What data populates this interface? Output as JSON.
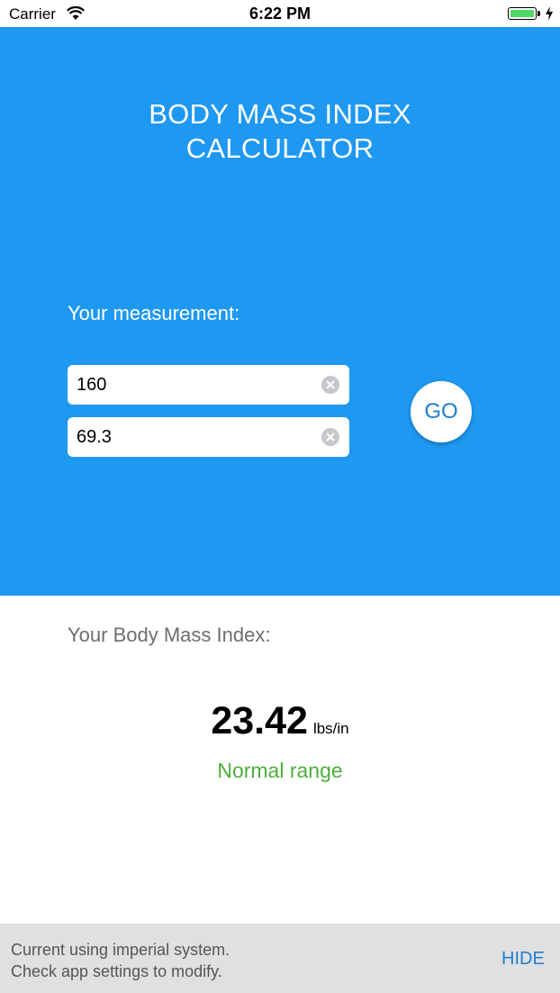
{
  "status_bar": {
    "carrier": "Carrier",
    "time": "6:22 PM",
    "wifi_icon": "wifi-icon",
    "battery_icon": "battery-icon",
    "charging_icon": "charging-bolt-icon",
    "battery_color": "#4cd964"
  },
  "header": {
    "title_line1": "BODY MASS INDEX",
    "title_line2": "CALCULATOR",
    "background_color": "#1e98f0"
  },
  "measurement": {
    "label": "Your measurement:",
    "weight_value": "160",
    "height_value": "69.3",
    "clear_icon": "clear-circle-icon",
    "go_label": "GO"
  },
  "result": {
    "label": "Your Body Mass Index:",
    "value": "23.42",
    "unit": "lbs/in",
    "category": "Normal range",
    "category_color": "#4caf3a"
  },
  "notice": {
    "line1": "Current using imperial system.",
    "line2": "Check app settings to modify.",
    "hide_label": "HIDE"
  }
}
